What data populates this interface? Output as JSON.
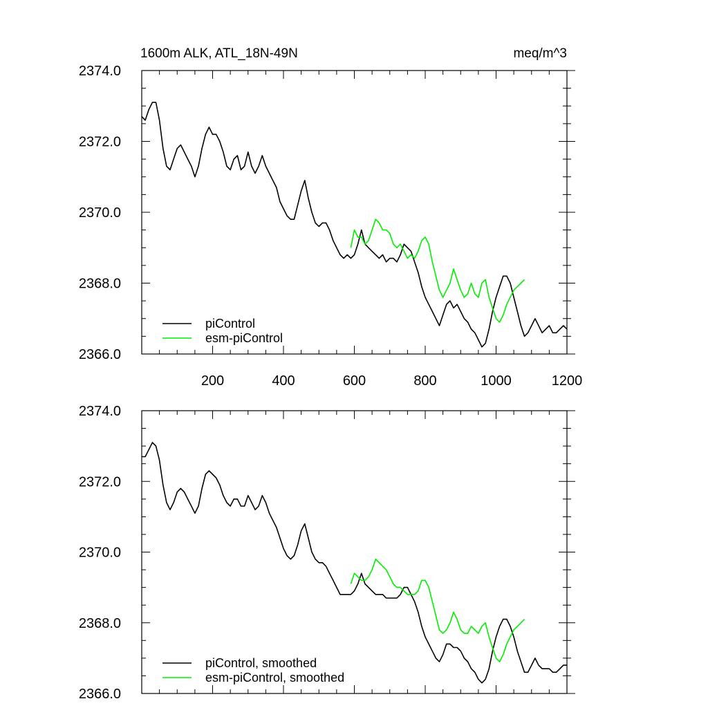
{
  "figure": {
    "title_left": "1600m ALK, ATL_18N-49N",
    "title_right": "meq/m^3"
  },
  "chart_data": [
    {
      "type": "line",
      "title": "1600m ALK, ATL_18N-49N",
      "units": "meq/m^3",
      "xlabel": "",
      "ylabel": "",
      "xlim": [
        0,
        1200
      ],
      "ylim": [
        2366.0,
        2374.0
      ],
      "x_ticks": [
        200,
        400,
        600,
        800,
        1000,
        1200
      ],
      "x_tick_labels": [
        "200",
        "400",
        "600",
        "800",
        "1000",
        "1200"
      ],
      "y_ticks": [
        2366.0,
        2368.0,
        2370.0,
        2372.0,
        2374.0
      ],
      "y_tick_labels": [
        "2366.0",
        "2368.0",
        "2370.0",
        "2372.0",
        "2374.0"
      ],
      "legend_position": "bottom-left",
      "grid": false,
      "series": [
        {
          "name": "piControl",
          "color": "#000000",
          "x": [
            0,
            10,
            20,
            30,
            40,
            50,
            60,
            70,
            80,
            90,
            100,
            110,
            120,
            130,
            140,
            150,
            160,
            170,
            180,
            190,
            200,
            210,
            220,
            230,
            240,
            250,
            260,
            270,
            280,
            290,
            300,
            310,
            320,
            330,
            340,
            350,
            360,
            370,
            380,
            390,
            400,
            410,
            420,
            430,
            440,
            450,
            460,
            470,
            480,
            490,
            500,
            510,
            520,
            530,
            540,
            550,
            560,
            570,
            580,
            590,
            600,
            610,
            620,
            630,
            640,
            650,
            660,
            670,
            680,
            690,
            700,
            710,
            720,
            730,
            740,
            750,
            760,
            770,
            780,
            790,
            800,
            810,
            820,
            830,
            840,
            850,
            860,
            870,
            880,
            890,
            900,
            910,
            920,
            930,
            940,
            950,
            960,
            970,
            980,
            990,
            1000,
            1010,
            1020,
            1030,
            1040,
            1050,
            1060,
            1070,
            1080,
            1090,
            1100,
            1110,
            1120,
            1130,
            1140,
            1150,
            1160,
            1170,
            1180,
            1190,
            1200
          ],
          "y": [
            2372.7,
            2372.6,
            2372.9,
            2373.1,
            2373.1,
            2372.6,
            2371.8,
            2371.3,
            2371.2,
            2371.5,
            2371.8,
            2371.9,
            2371.7,
            2371.5,
            2371.3,
            2371.0,
            2371.3,
            2371.8,
            2372.2,
            2372.4,
            2372.2,
            2372.2,
            2372.0,
            2371.7,
            2371.3,
            2371.2,
            2371.5,
            2371.6,
            2371.2,
            2371.3,
            2371.7,
            2371.3,
            2371.1,
            2371.3,
            2371.6,
            2371.3,
            2371.1,
            2370.9,
            2370.7,
            2370.3,
            2370.1,
            2369.9,
            2369.8,
            2369.8,
            2370.2,
            2370.6,
            2370.9,
            2370.4,
            2370.0,
            2369.7,
            2369.6,
            2369.7,
            2369.7,
            2369.5,
            2369.2,
            2369.0,
            2368.8,
            2368.7,
            2368.8,
            2368.7,
            2368.8,
            2369.1,
            2369.5,
            2369.1,
            2369.0,
            2368.9,
            2368.8,
            2368.7,
            2368.8,
            2368.6,
            2368.7,
            2368.7,
            2368.6,
            2368.8,
            2369.1,
            2369.0,
            2368.9,
            2368.6,
            2368.3,
            2367.9,
            2367.6,
            2367.4,
            2367.2,
            2367.0,
            2366.8,
            2367.1,
            2367.4,
            2367.5,
            2367.3,
            2367.4,
            2367.2,
            2367.0,
            2366.9,
            2366.7,
            2366.6,
            2366.4,
            2366.2,
            2366.3,
            2366.7,
            2367.2,
            2367.6,
            2367.9,
            2368.2,
            2368.2,
            2368.0,
            2367.6,
            2367.2,
            2366.8,
            2366.5,
            2366.6,
            2366.8,
            2367.0,
            2366.8,
            2366.6,
            2366.7,
            2366.8,
            2366.6,
            2366.6,
            2366.7,
            2366.8,
            2366.7
          ]
        },
        {
          "name": "esm-piControl",
          "color": "#00ee00",
          "x": [
            590,
            600,
            610,
            620,
            630,
            640,
            650,
            660,
            670,
            680,
            690,
            700,
            710,
            720,
            730,
            740,
            750,
            760,
            770,
            780,
            790,
            800,
            810,
            820,
            830,
            840,
            850,
            860,
            870,
            880,
            890,
            900,
            910,
            920,
            930,
            940,
            950,
            960,
            970,
            980,
            990,
            1000,
            1010,
            1020,
            1030,
            1040,
            1050,
            1060,
            1070,
            1080
          ],
          "y": [
            2369.0,
            2369.5,
            2369.3,
            2369.3,
            2369.1,
            2369.2,
            2369.5,
            2369.8,
            2369.7,
            2369.5,
            2369.5,
            2369.4,
            2369.1,
            2369.0,
            2369.1,
            2368.9,
            2368.7,
            2368.8,
            2368.7,
            2368.9,
            2369.2,
            2369.3,
            2369.1,
            2368.6,
            2368.2,
            2367.8,
            2367.6,
            2367.8,
            2368.0,
            2368.4,
            2368.1,
            2367.8,
            2367.6,
            2367.7,
            2368.0,
            2367.7,
            2367.6,
            2368.0,
            2368.1,
            2367.6,
            2367.3,
            2367.0,
            2366.9,
            2367.1,
            2367.4,
            2367.6,
            2367.8,
            2367.9,
            2368.0,
            2368.1
          ]
        }
      ]
    },
    {
      "type": "line",
      "title": "",
      "xlabel": "",
      "ylabel": "",
      "xlim": [
        0,
        1200
      ],
      "ylim": [
        2366.0,
        2374.0
      ],
      "x_ticks": [
        200,
        400,
        600,
        800,
        1000,
        1200
      ],
      "x_tick_labels": [],
      "y_ticks": [
        2366.0,
        2368.0,
        2370.0,
        2372.0,
        2374.0
      ],
      "y_tick_labels": [
        "2366.0",
        "2368.0",
        "2370.0",
        "2372.0",
        "2374.0"
      ],
      "legend_position": "bottom-left",
      "grid": false,
      "series": [
        {
          "name": "piControl, smoothed",
          "color": "#000000",
          "x": [
            0,
            10,
            20,
            30,
            40,
            50,
            60,
            70,
            80,
            90,
            100,
            110,
            120,
            130,
            140,
            150,
            160,
            170,
            180,
            190,
            200,
            210,
            220,
            230,
            240,
            250,
            260,
            270,
            280,
            290,
            300,
            310,
            320,
            330,
            340,
            350,
            360,
            370,
            380,
            390,
            400,
            410,
            420,
            430,
            440,
            450,
            460,
            470,
            480,
            490,
            500,
            510,
            520,
            530,
            540,
            550,
            560,
            570,
            580,
            590,
            600,
            610,
            620,
            630,
            640,
            650,
            660,
            670,
            680,
            690,
            700,
            710,
            720,
            730,
            740,
            750,
            760,
            770,
            780,
            790,
            800,
            810,
            820,
            830,
            840,
            850,
            860,
            870,
            880,
            890,
            900,
            910,
            920,
            930,
            940,
            950,
            960,
            970,
            980,
            990,
            1000,
            1010,
            1020,
            1030,
            1040,
            1050,
            1060,
            1070,
            1080,
            1090,
            1100,
            1110,
            1120,
            1130,
            1140,
            1150,
            1160,
            1170,
            1180,
            1190,
            1200
          ],
          "y": [
            2372.7,
            2372.7,
            2372.9,
            2373.1,
            2373.0,
            2372.6,
            2371.9,
            2371.4,
            2371.2,
            2371.4,
            2371.7,
            2371.8,
            2371.7,
            2371.5,
            2371.3,
            2371.1,
            2371.3,
            2371.8,
            2372.2,
            2372.3,
            2372.2,
            2372.1,
            2371.9,
            2371.6,
            2371.4,
            2371.3,
            2371.5,
            2371.5,
            2371.3,
            2371.3,
            2371.6,
            2371.4,
            2371.2,
            2371.3,
            2371.6,
            2371.4,
            2371.1,
            2370.9,
            2370.7,
            2370.4,
            2370.1,
            2369.9,
            2369.8,
            2369.9,
            2370.2,
            2370.6,
            2370.8,
            2370.4,
            2370.0,
            2369.8,
            2369.7,
            2369.7,
            2369.6,
            2369.4,
            2369.2,
            2369.0,
            2368.8,
            2368.8,
            2368.8,
            2368.8,
            2368.9,
            2369.1,
            2369.4,
            2369.1,
            2369.0,
            2368.9,
            2368.8,
            2368.8,
            2368.8,
            2368.7,
            2368.7,
            2368.7,
            2368.7,
            2368.8,
            2369.0,
            2369.0,
            2368.8,
            2368.6,
            2368.3,
            2367.9,
            2367.6,
            2367.4,
            2367.2,
            2367.0,
            2366.9,
            2367.1,
            2367.4,
            2367.4,
            2367.3,
            2367.3,
            2367.2,
            2367.0,
            2366.9,
            2366.7,
            2366.6,
            2366.4,
            2366.3,
            2366.4,
            2366.7,
            2367.2,
            2367.6,
            2367.9,
            2368.1,
            2368.1,
            2367.9,
            2367.6,
            2367.2,
            2366.9,
            2366.6,
            2366.6,
            2366.8,
            2367.0,
            2366.8,
            2366.7,
            2366.7,
            2366.7,
            2366.6,
            2366.6,
            2366.7,
            2366.8,
            2366.8
          ]
        },
        {
          "name": "esm-piControl, smoothed",
          "color": "#00ee00",
          "x": [
            590,
            600,
            610,
            620,
            630,
            640,
            650,
            660,
            670,
            680,
            690,
            700,
            710,
            720,
            730,
            740,
            750,
            760,
            770,
            780,
            790,
            800,
            810,
            820,
            830,
            840,
            850,
            860,
            870,
            880,
            890,
            900,
            910,
            920,
            930,
            940,
            950,
            960,
            970,
            980,
            990,
            1000,
            1010,
            1020,
            1030,
            1040,
            1050,
            1060,
            1070,
            1080
          ],
          "y": [
            2369.1,
            2369.4,
            2369.3,
            2369.2,
            2369.2,
            2369.3,
            2369.5,
            2369.8,
            2369.7,
            2369.6,
            2369.5,
            2369.3,
            2369.1,
            2369.0,
            2369.0,
            2368.9,
            2368.8,
            2368.8,
            2368.8,
            2368.9,
            2369.2,
            2369.2,
            2369.0,
            2368.6,
            2368.2,
            2367.8,
            2367.7,
            2367.8,
            2368.0,
            2368.3,
            2368.1,
            2367.8,
            2367.7,
            2367.7,
            2367.9,
            2367.8,
            2367.7,
            2367.9,
            2368.0,
            2367.6,
            2367.3,
            2367.0,
            2366.9,
            2367.1,
            2367.4,
            2367.6,
            2367.8,
            2367.9,
            2368.0,
            2368.1
          ]
        }
      ]
    }
  ]
}
